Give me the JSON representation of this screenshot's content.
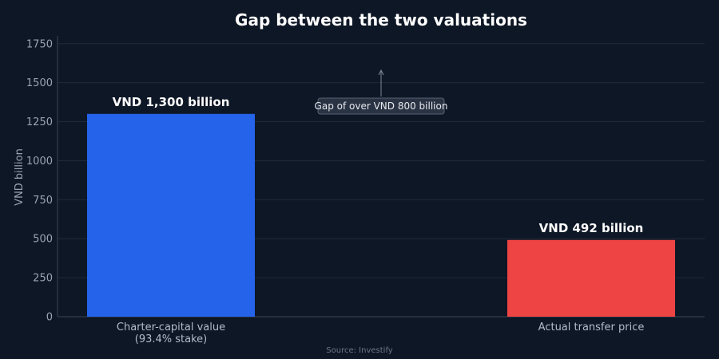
{
  "chart_data": {
    "type": "bar",
    "title": "Gap between the two valuations",
    "ylabel": "VND billion",
    "xlabel": "",
    "ylim": [
      0,
      1800
    ],
    "yticks": [
      0,
      250,
      500,
      750,
      1000,
      1250,
      1500,
      1750
    ],
    "grid": true,
    "categories": [
      [
        "Charter-capital value",
        "(93.4% stake)"
      ],
      [
        "Actual transfer price"
      ]
    ],
    "values": [
      1300,
      492
    ],
    "data_labels": [
      "VND 1,300 billion",
      "VND 492 billion"
    ],
    "colors": [
      "#2563eb",
      "#ef4444"
    ],
    "annotation": {
      "text": "Gap of over VND 800 billion",
      "arrow": "up"
    },
    "source": "Source: Investify"
  }
}
